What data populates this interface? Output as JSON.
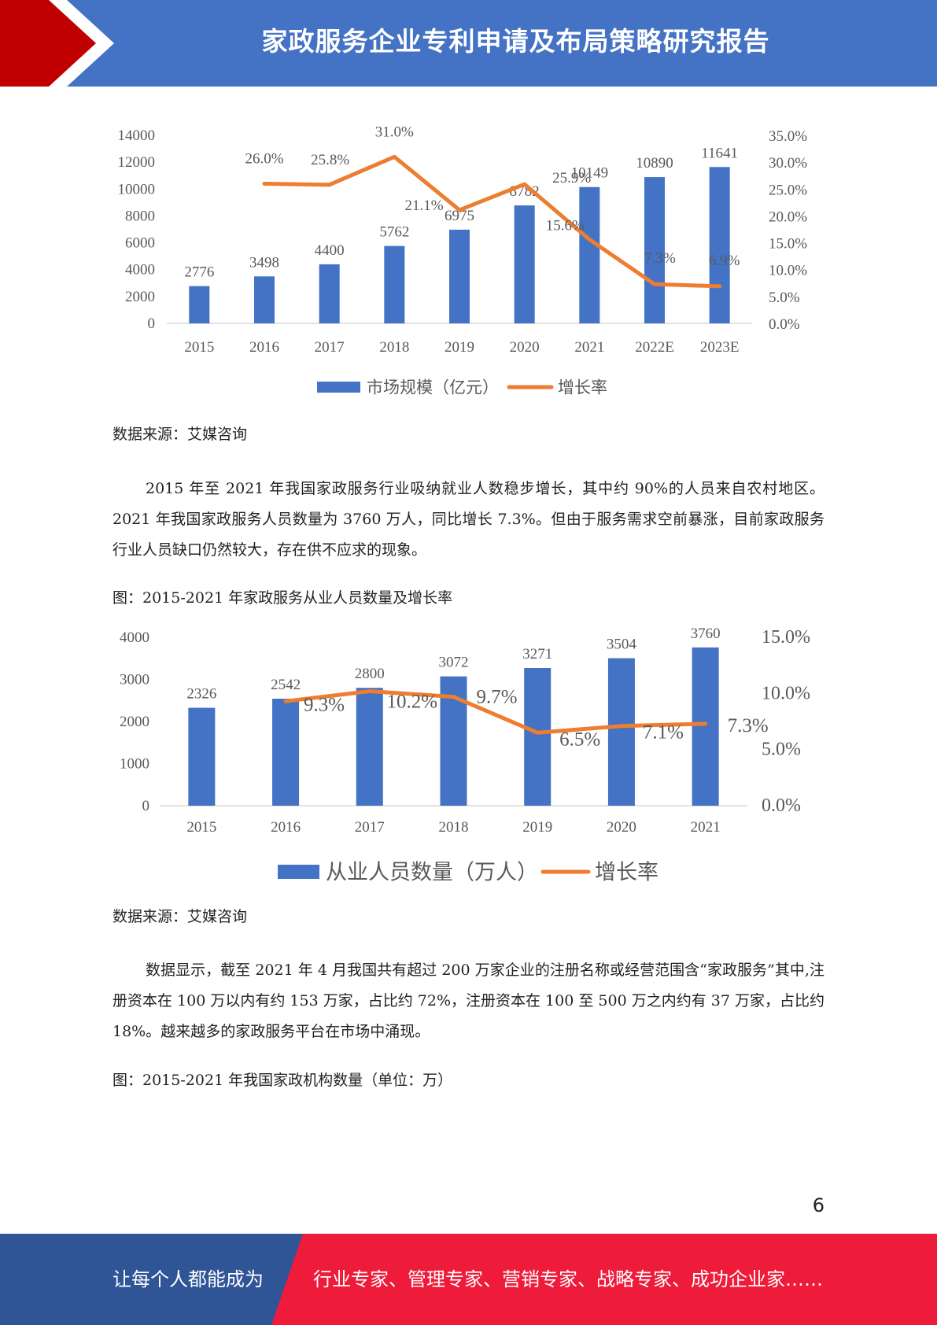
{
  "header": {
    "title": "家政服务企业专利申请及布局策略研究报告"
  },
  "chart1": {
    "type": "bar+line",
    "categories": [
      "2015",
      "2016",
      "2017",
      "2018",
      "2019",
      "2020",
      "2021",
      "2022E",
      "2023E"
    ],
    "bar_series": {
      "name": "市场规模（亿元）",
      "values": [
        2776,
        3498,
        4400,
        5762,
        6975,
        8782,
        10149,
        10890,
        11641
      ],
      "color": "#4472c4"
    },
    "line_series": {
      "name": "增长率",
      "values": [
        null,
        26.0,
        25.8,
        31.0,
        21.1,
        25.9,
        15.6,
        7.3,
        6.9
      ],
      "labels": [
        "",
        "26.0%",
        "25.8%",
        "31.0%",
        "21.1%",
        "25.9%",
        "15.6%",
        "7.3%",
        "6.9%"
      ],
      "color": "#ed7d31"
    },
    "y_left": {
      "min": 0,
      "max": 14000,
      "ticks": [
        "0",
        "2000",
        "4000",
        "6000",
        "8000",
        "10000",
        "12000",
        "14000"
      ]
    },
    "y_right": {
      "min": 0,
      "max": 35,
      "ticks": [
        "0.0%",
        "5.0%",
        "10.0%",
        "15.0%",
        "20.0%",
        "25.0%",
        "30.0%",
        "35.0%"
      ]
    }
  },
  "source1": "数据来源：艾媒咨询",
  "paragraph1": "2015 年至 2021 年我国家政服务行业吸纳就业人数稳步增长，其中约 90%的人员来自农村地区。2021 年我国家政服务人员数量为 3760 万人，同比增长 7.3%。但由于服务需求空前暴涨，目前家政服务行业人员缺口仍然较大，存在供不应求的现象。",
  "figure2_caption": "图：2015-2021 年家政服务从业人员数量及增长率",
  "chart2": {
    "type": "bar+line",
    "categories": [
      "2015",
      "2016",
      "2017",
      "2018",
      "2019",
      "2020",
      "2021"
    ],
    "bar_series": {
      "name": "从业人员数量（万人）",
      "values": [
        2326,
        2542,
        2800,
        3072,
        3271,
        3504,
        3760
      ],
      "color": "#4472c4"
    },
    "line_series": {
      "name": "增长率",
      "values": [
        null,
        9.3,
        10.2,
        9.7,
        6.5,
        7.1,
        7.3
      ],
      "labels": [
        "",
        "9.3%",
        "10.2%",
        "9.7%",
        "6.5%",
        "7.1%",
        "7.3%"
      ],
      "color": "#ed7d31"
    },
    "y_left": {
      "min": 0,
      "max": 4000,
      "ticks": [
        "0",
        "1000",
        "2000",
        "3000",
        "4000"
      ]
    },
    "y_right": {
      "min": 0,
      "max": 15,
      "ticks": [
        "0.0%",
        "5.0%",
        "10.0%",
        "15.0%"
      ]
    }
  },
  "source2": "数据来源：艾媒咨询",
  "paragraph2": "数据显示，截至 2021 年 4 月我国共有超过 200 万家企业的注册名称或经营范围含“家政服务”其中,注册资本在 100 万以内有约 153 万家，占比约 72%，注册资本在 100 至 500 万之内约有 37 万家，占比约 18%。越来越多的家政服务平台在市场中涌现。",
  "figure3_caption": "图：2015-2021 年我国家政机构数量（单位：万）",
  "page_number": "6",
  "footer": {
    "left": "让每个人都能成为",
    "right": "行业专家、管理专家、营销专家、战略专家、成功企业家……"
  },
  "colors": {
    "header_blue": "#4472c4",
    "accent_red": "#c00000",
    "footer_blue": "#2f5597",
    "footer_red": "#ee1b3a"
  }
}
